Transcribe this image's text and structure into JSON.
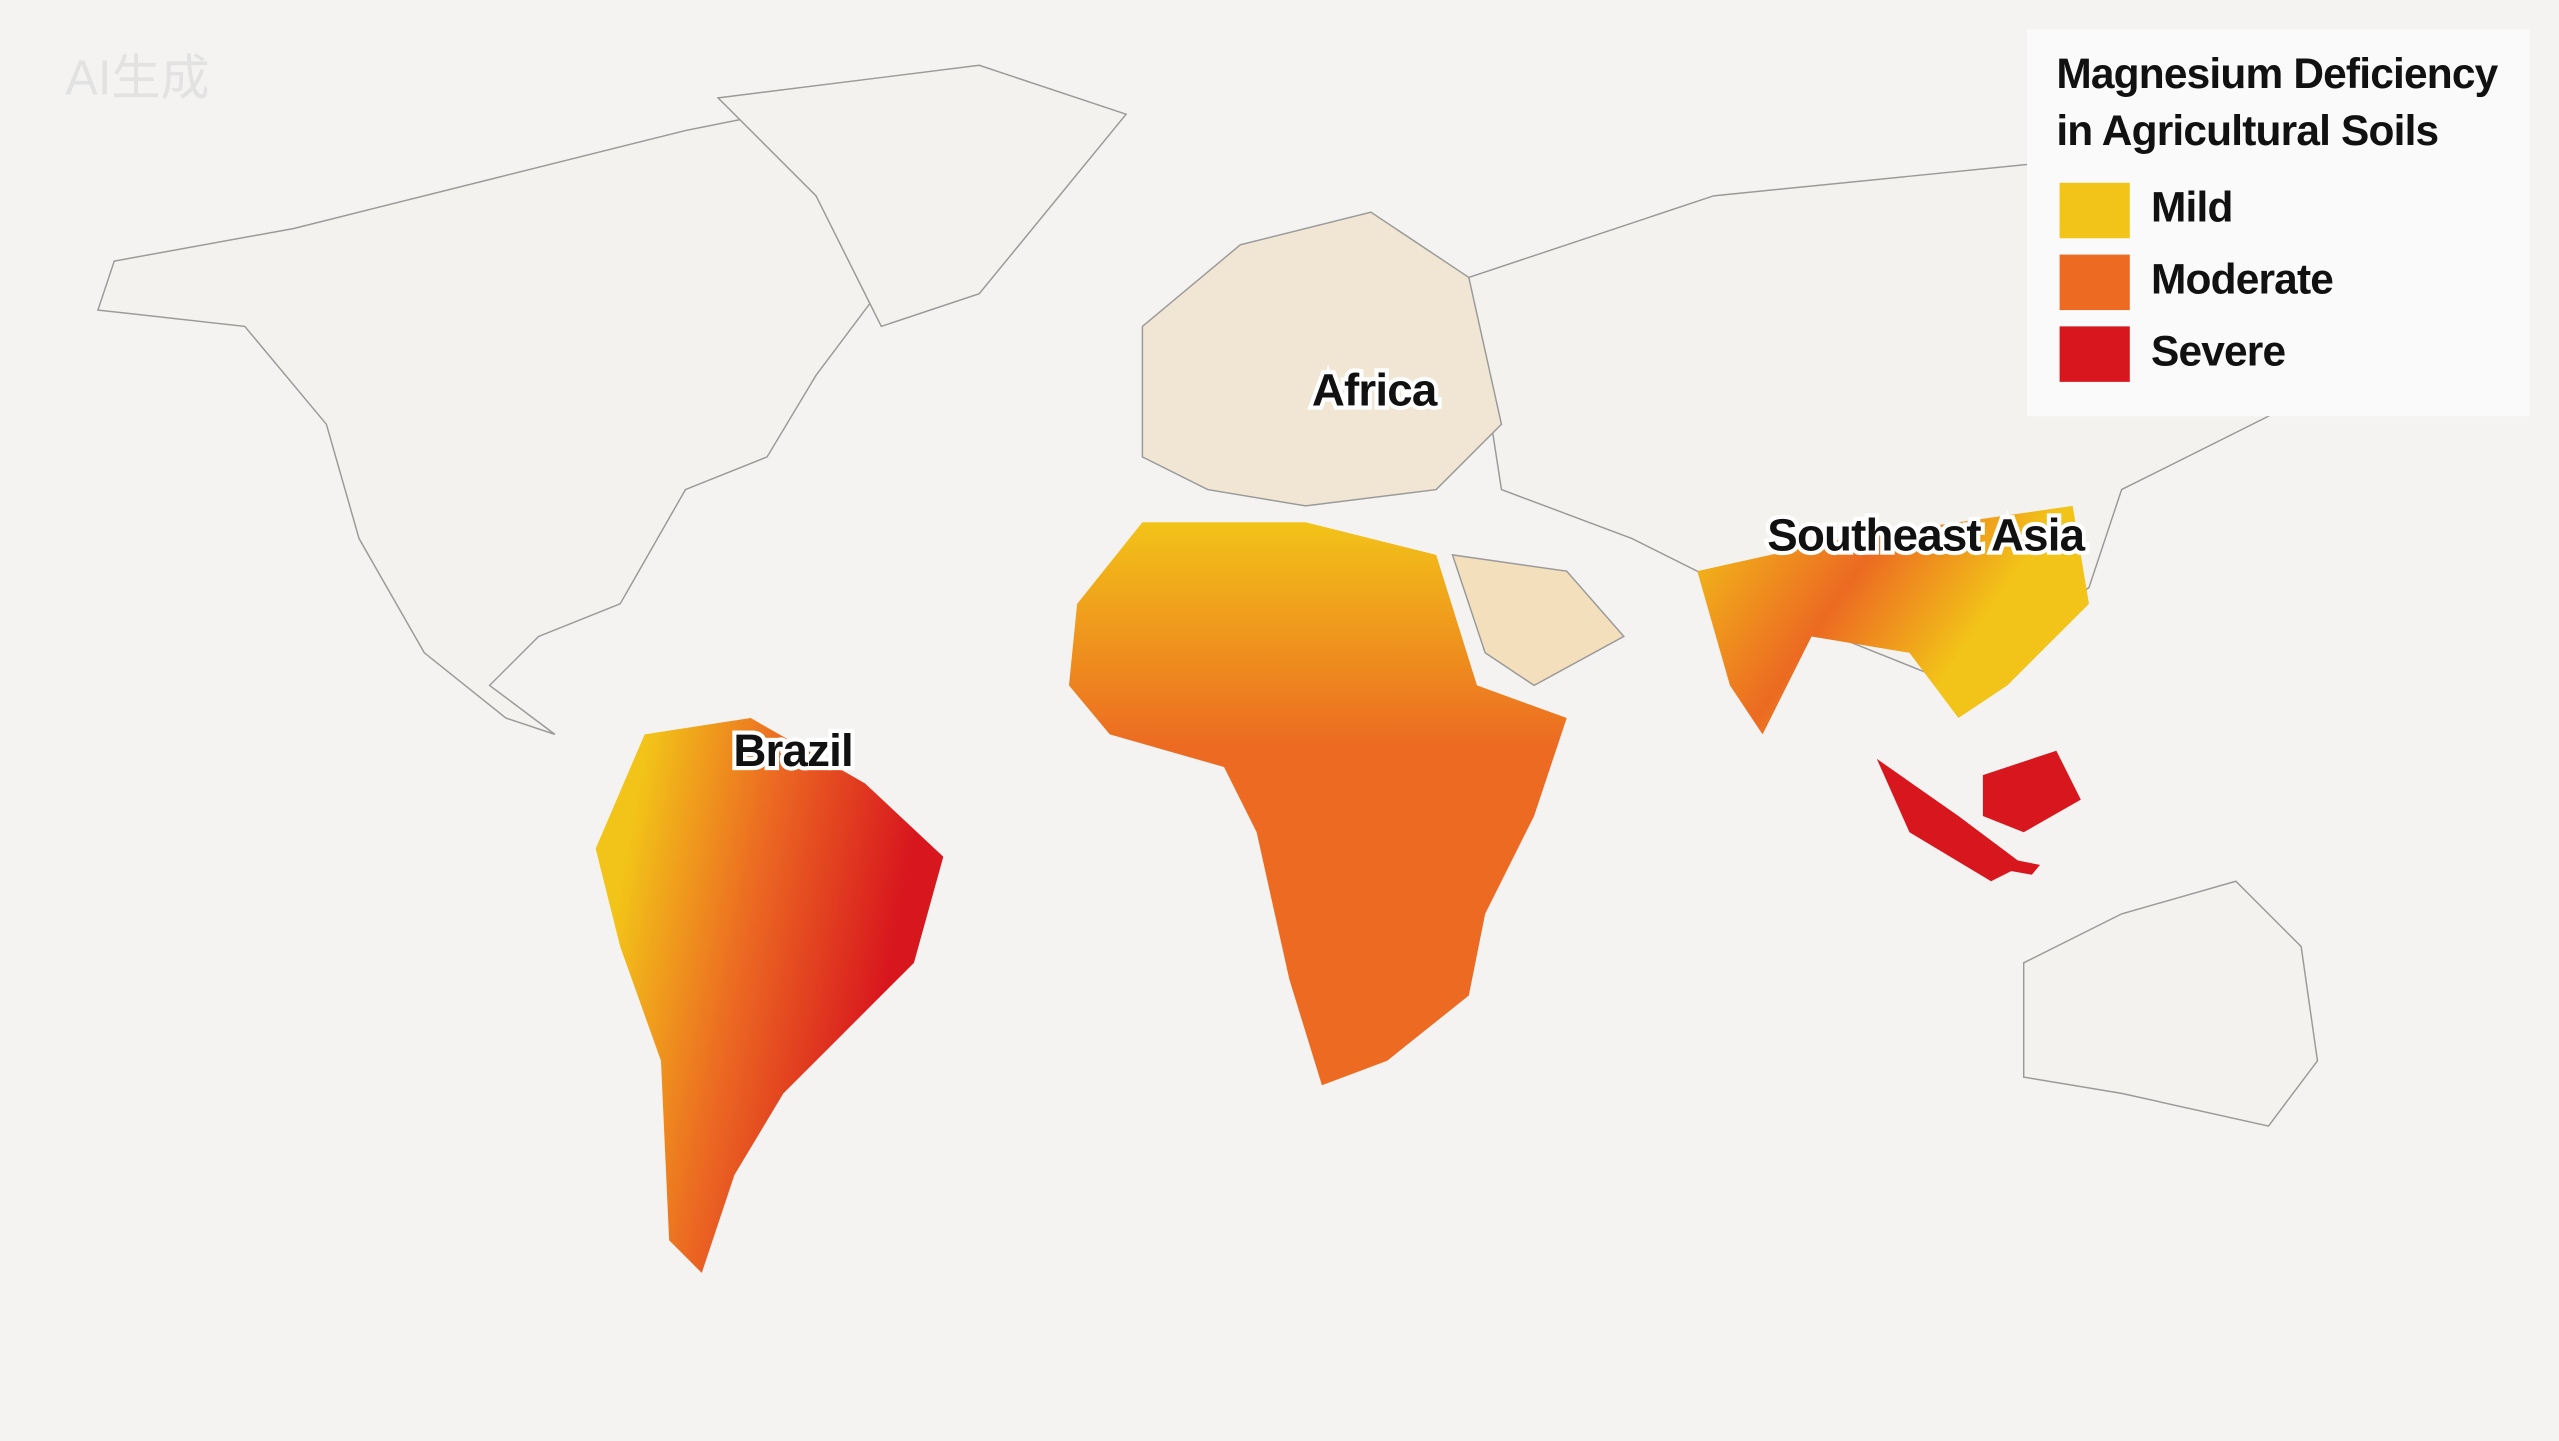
{
  "watermark": "AI生成",
  "legend": {
    "title_lines": [
      "Magnesium Deficiency",
      "in Agricultural Soils"
    ],
    "items": [
      {
        "label": "Mild",
        "color": "#f2c318"
      },
      {
        "label": "Moderate",
        "color": "#ec6a22"
      },
      {
        "label": "Severe",
        "color": "#d8161e"
      }
    ]
  },
  "regions": [
    {
      "label": "Africa"
    },
    {
      "label": "Brazil"
    },
    {
      "label": "Southeast Asia"
    }
  ]
}
